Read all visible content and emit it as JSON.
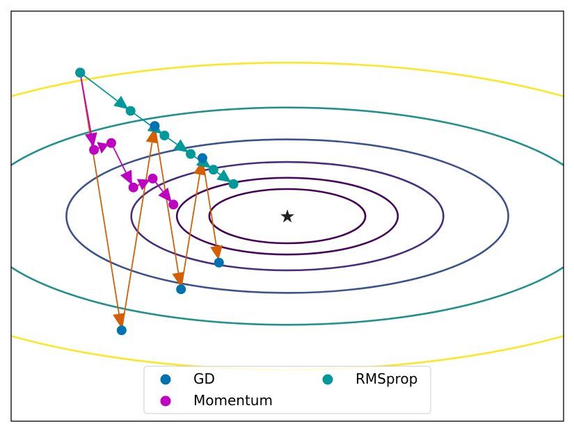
{
  "chart_data": {
    "type": "scatter",
    "title": "",
    "xlabel": "",
    "ylabel": "",
    "xlim": [
      -4,
      4
    ],
    "ylim": [
      -3,
      3
    ],
    "grid": false,
    "minimum": {
      "x": 0,
      "y": 0,
      "marker": "star"
    },
    "contours": {
      "ellipse_axis_ratio": 2.85,
      "levels": [
        {
          "a": 1.13,
          "color": "#440154"
        },
        {
          "a": 1.6,
          "color": "#46085c"
        },
        {
          "a": 2.26,
          "color": "#472d7b"
        },
        {
          "a": 3.2,
          "color": "#3b528b"
        },
        {
          "a": 4.53,
          "color": "#21918c"
        },
        {
          "a": 6.4,
          "color": "#fde725"
        }
      ]
    },
    "series": [
      {
        "name": "GD",
        "color": "#0072b2",
        "arrow_color": "#d55e00",
        "points": [
          {
            "x": -3.0,
            "y": 2.1
          },
          {
            "x": -2.4,
            "y": -1.67
          },
          {
            "x": -1.92,
            "y": 1.32
          },
          {
            "x": -1.54,
            "y": -1.07
          },
          {
            "x": -1.23,
            "y": 0.85
          },
          {
            "x": -0.99,
            "y": -0.68
          }
        ]
      },
      {
        "name": "Momentum",
        "color": "#c000c0",
        "arrow_color": "#c000c0",
        "points": [
          {
            "x": -3.0,
            "y": 2.1
          },
          {
            "x": -2.8,
            "y": 0.97
          },
          {
            "x": -2.55,
            "y": 1.07
          },
          {
            "x": -2.23,
            "y": 0.42
          },
          {
            "x": -1.95,
            "y": 0.55
          },
          {
            "x": -1.65,
            "y": 0.17
          }
        ]
      },
      {
        "name": "RMSprop",
        "color": "#009999",
        "arrow_color": "#009999",
        "points": [
          {
            "x": -3.0,
            "y": 2.1
          },
          {
            "x": -2.27,
            "y": 1.54
          },
          {
            "x": -1.78,
            "y": 1.18
          },
          {
            "x": -1.4,
            "y": 0.91
          },
          {
            "x": -1.07,
            "y": 0.68
          },
          {
            "x": -0.78,
            "y": 0.47
          }
        ]
      }
    ],
    "legend": {
      "placement": "lower center",
      "columns": 2,
      "entries": [
        "GD",
        "Momentum",
        "RMSprop"
      ]
    }
  }
}
